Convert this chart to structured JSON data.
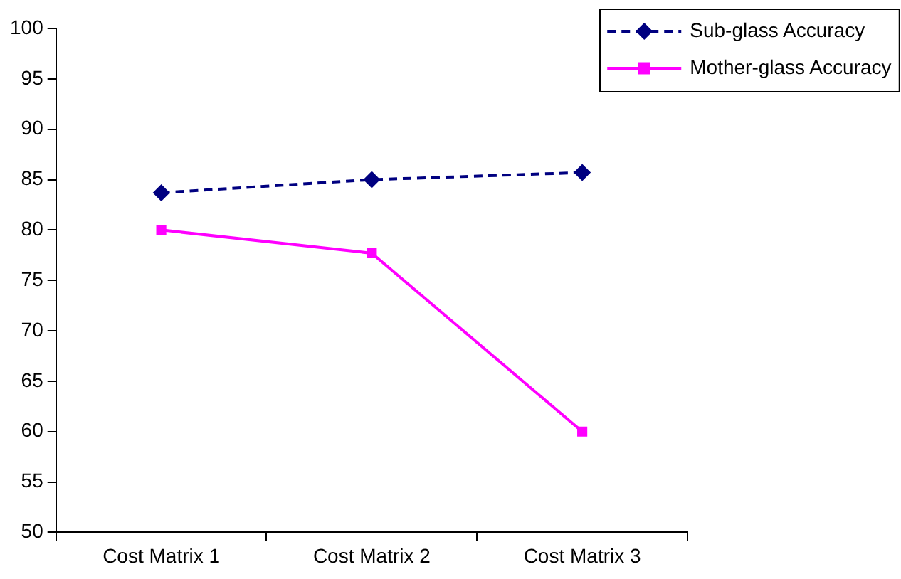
{
  "chart_data": {
    "type": "line",
    "categories": [
      "Cost Matrix 1",
      "Cost Matrix 2",
      "Cost Matrix 3"
    ],
    "series": [
      {
        "name": "Sub-glass Accuracy",
        "color": "#000080",
        "values": [
          83.7,
          85.0,
          85.7
        ],
        "marker": "diamond",
        "line_style": "dashed"
      },
      {
        "name": "Mother-glass Accuracy",
        "color": "#ff00ff",
        "values": [
          80,
          77.7,
          60
        ],
        "marker": "square",
        "line_style": "solid"
      }
    ],
    "ylim": [
      50,
      100
    ],
    "yticks": [
      50,
      55,
      60,
      65,
      70,
      75,
      80,
      85,
      90,
      95,
      100
    ],
    "grid": false,
    "legend": "top right"
  }
}
